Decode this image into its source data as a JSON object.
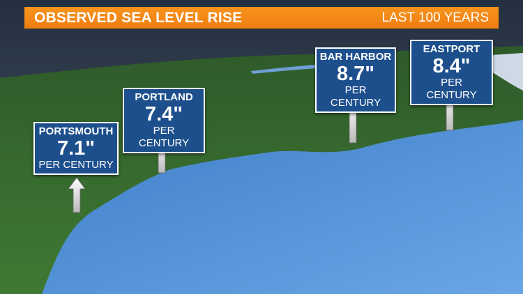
{
  "header": {
    "title": "OBSERVED SEA LEVEL RISE",
    "subtitle": "LAST 100 YEARS"
  },
  "stations": [
    {
      "name": "PORTSMOUTH",
      "value": "7.1\"",
      "unit": "PER CENTURY"
    },
    {
      "name": "PORTLAND",
      "value": "7.4\"",
      "unit": "PER CENTURY"
    },
    {
      "name": "BAR HARBOR",
      "value": "8.7\"",
      "unit": "PER CENTURY"
    },
    {
      "name": "EASTPORT",
      "value": "8.4\"",
      "unit": "PER CENTURY"
    }
  ]
}
